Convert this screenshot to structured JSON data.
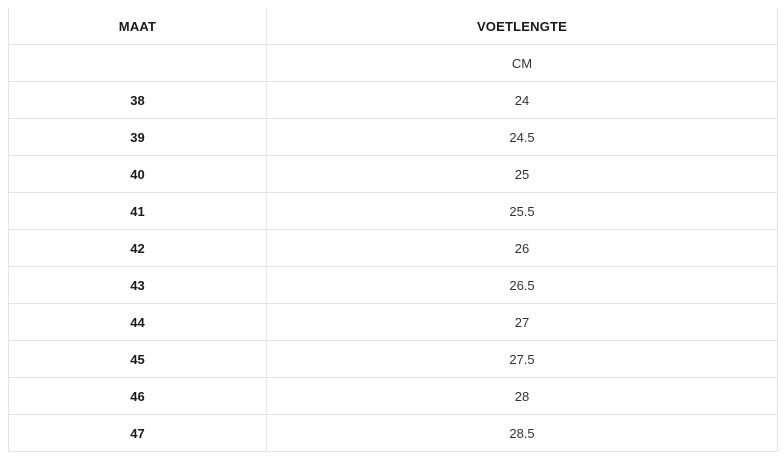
{
  "table": {
    "headers": [
      "MAAT",
      "VOETLENGTE"
    ],
    "unit_label": "CM",
    "rows": [
      {
        "maat": "38",
        "cm": "24"
      },
      {
        "maat": "39",
        "cm": "24.5"
      },
      {
        "maat": "40",
        "cm": "25"
      },
      {
        "maat": "41",
        "cm": "25.5"
      },
      {
        "maat": "42",
        "cm": "26"
      },
      {
        "maat": "43",
        "cm": "26.5"
      },
      {
        "maat": "44",
        "cm": "27"
      },
      {
        "maat": "45",
        "cm": "27.5"
      },
      {
        "maat": "46",
        "cm": "28"
      },
      {
        "maat": "47",
        "cm": "28.5"
      }
    ]
  },
  "chart_data": {
    "type": "table",
    "columns": [
      "MAAT",
      "VOETLENGTE"
    ],
    "unit_row": [
      "",
      "CM"
    ],
    "rows": [
      [
        38,
        24
      ],
      [
        39,
        24.5
      ],
      [
        40,
        25
      ],
      [
        41,
        25.5
      ],
      [
        42,
        26
      ],
      [
        43,
        26.5
      ],
      [
        44,
        27
      ],
      [
        45,
        27.5
      ],
      [
        46,
        28
      ],
      [
        47,
        28.5
      ]
    ]
  },
  "colors": {
    "border": "#e3e3e3",
    "header_text": "#1a1a1a",
    "body_text": "#333333",
    "background": "#ffffff"
  }
}
